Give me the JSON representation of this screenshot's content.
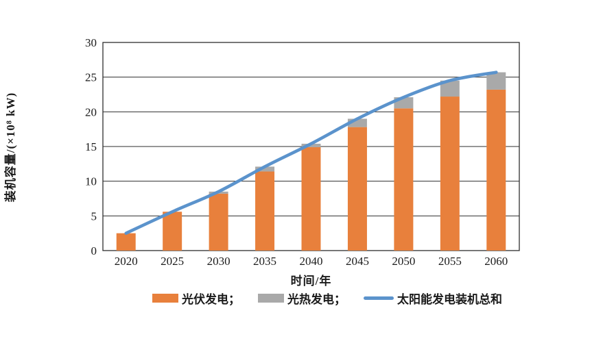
{
  "chart_data": {
    "type": "bar",
    "stacked": true,
    "title": "",
    "xlabel": "时间/年",
    "ylabel": "装机容量/(×10⁸ kW)",
    "categories": [
      "2020",
      "2025",
      "2030",
      "2035",
      "2040",
      "2045",
      "2050",
      "2055",
      "2060"
    ],
    "series": [
      {
        "name": "光伏发电",
        "type": "bar",
        "color": "#E8803C",
        "values": [
          2.5,
          5.6,
          8.2,
          11.4,
          14.9,
          17.8,
          20.5,
          22.2,
          23.2
        ]
      },
      {
        "name": "光热发电",
        "type": "bar",
        "color": "#A9A9A9",
        "values": [
          0,
          0,
          0.3,
          0.7,
          0.5,
          1.2,
          1.6,
          2.3,
          2.5
        ]
      },
      {
        "name": "太阳能发电装机总和",
        "type": "line",
        "color": "#5B93CC",
        "values": [
          2.5,
          5.6,
          8.5,
          12.1,
          15.4,
          19.0,
          22.1,
          24.5,
          25.7
        ]
      }
    ],
    "ylim": [
      0,
      30
    ],
    "yticks": [
      0,
      5,
      10,
      15,
      20,
      25,
      30
    ],
    "grid": "horizontal",
    "axis_color": "#2e2e2e",
    "legend_position": "bottom",
    "legend_labels": [
      "光伏发电；",
      "光热发电；",
      "太阳能发电装机总和"
    ]
  }
}
